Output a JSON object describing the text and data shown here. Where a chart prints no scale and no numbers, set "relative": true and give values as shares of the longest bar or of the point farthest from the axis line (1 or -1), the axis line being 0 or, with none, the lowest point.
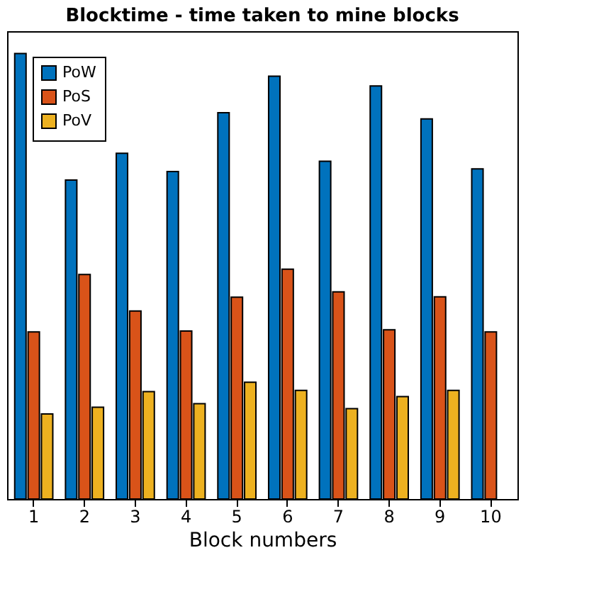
{
  "chart_data": {
    "type": "bar",
    "title": "Blocktime - time taken to mine blocks",
    "xlabel": "Block numbers",
    "relative": true,
    "categories": [
      "1",
      "2",
      "3",
      "4",
      "5",
      "6",
      "7",
      "8",
      "9",
      "10"
    ],
    "series": [
      {
        "name": "PoW",
        "color": "#0072bd",
        "values": [
          1,
          0.716,
          0.776,
          0.735,
          0.867,
          0.949,
          0.758,
          0.927,
          0.853,
          0.741
        ]
      },
      {
        "name": "PoS",
        "color": "#d95319",
        "values": [
          0.375,
          0.504,
          0.422,
          0.377,
          0.453,
          0.516,
          0.465,
          0.38,
          0.454,
          0.375
        ]
      },
      {
        "name": "PoV",
        "color": "#edb120",
        "values": [
          0.191,
          0.206,
          0.241,
          0.214,
          0.262,
          0.244,
          0.203,
          0.23,
          0.244,
          null
        ]
      }
    ],
    "legend": "top left",
    "grid": false
  }
}
